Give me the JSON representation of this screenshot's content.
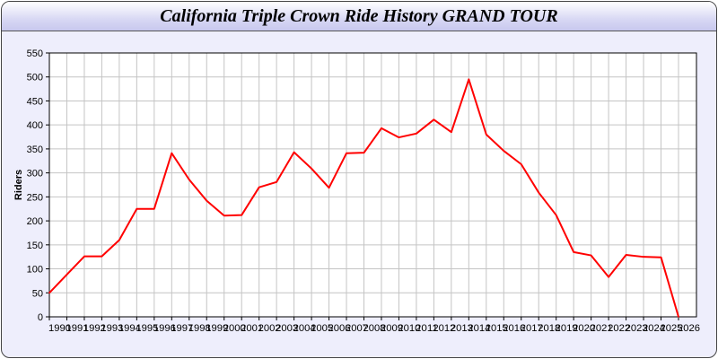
{
  "chart_data": {
    "type": "line",
    "title": "California Triple Crown Ride History GRAND TOUR",
    "xlabel": "",
    "ylabel": "Riders",
    "ylim": [
      0,
      550
    ],
    "yticks": [
      0,
      50,
      100,
      150,
      200,
      250,
      300,
      350,
      400,
      450,
      500,
      550
    ],
    "grid": true,
    "x": [
      1990,
      1991,
      1992,
      1993,
      1994,
      1995,
      1996,
      1997,
      1998,
      1999,
      2000,
      2001,
      2002,
      2003,
      2004,
      2005,
      2006,
      2007,
      2008,
      2009,
      2010,
      2011,
      2012,
      2013,
      2014,
      2015,
      2016,
      2017,
      2018,
      2019,
      2020,
      2021,
      2022,
      2023,
      2024,
      2025,
      2026
    ],
    "series": [
      {
        "values": [
          50,
          88,
          126,
          126,
          160,
          225,
          225,
          341,
          286,
          242,
          211,
          212,
          270,
          281,
          343,
          309,
          269,
          341,
          342,
          393,
          374,
          382,
          411,
          385,
          495,
          380,
          346,
          318,
          259,
          212,
          135,
          128,
          83,
          129,
          125,
          124,
          0
        ],
        "color": "#ff0000"
      }
    ]
  }
}
